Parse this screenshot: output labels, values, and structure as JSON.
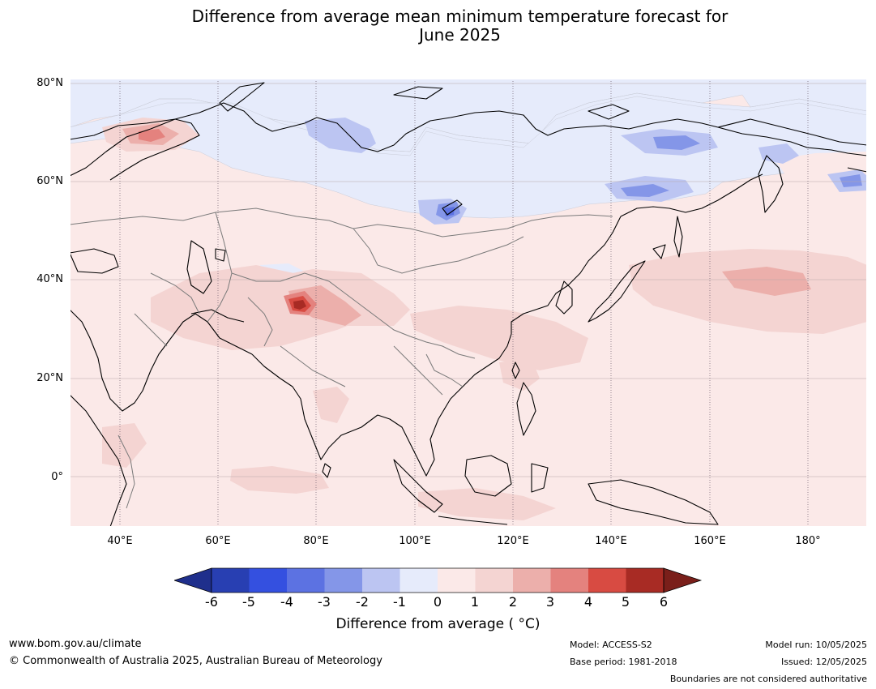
{
  "title": {
    "line1": "Difference from average mean minimum temperature forecast for",
    "line2": "June 2025"
  },
  "map": {
    "lat_labels": [
      "80°N",
      "60°N",
      "40°N",
      "20°N",
      "0°"
    ],
    "lon_labels": [
      "40°E",
      "60°E",
      "80°E",
      "100°E",
      "120°E",
      "140°E",
      "160°E",
      "180°"
    ],
    "extent": {
      "lon_min": 30,
      "lon_max": 192,
      "lat_min": -10,
      "lat_max": 81
    }
  },
  "colorbar": {
    "ticks": [
      "-6",
      "-5",
      "-4",
      "-3",
      "-2",
      "-1",
      "0",
      "1",
      "2",
      "3",
      "4",
      "5",
      "6"
    ],
    "colors": [
      "#1f2f8c",
      "#283fb2",
      "#3450e0",
      "#5c72e2",
      "#8496e8",
      "#bcc5f2",
      "#e6ebfb",
      "#fbe9e8",
      "#f4d4d2",
      "#ecafab",
      "#e4827e",
      "#d84b42",
      "#a82b24",
      "#7a1f1a"
    ],
    "label": "Difference from average ( °C)"
  },
  "footer": {
    "website": "www.bom.gov.au/climate",
    "copyright": "© Commonwealth of Australia 2025, Australian Bureau of Meteorology",
    "model": "Model: ACCESS-S2",
    "base_period": "Base period: 1981-2018",
    "model_run": "Model run: 10/05/2025",
    "issued": "Issued: 12/05/2025",
    "disclaimer": "Boundaries are not considered authoritative"
  }
}
